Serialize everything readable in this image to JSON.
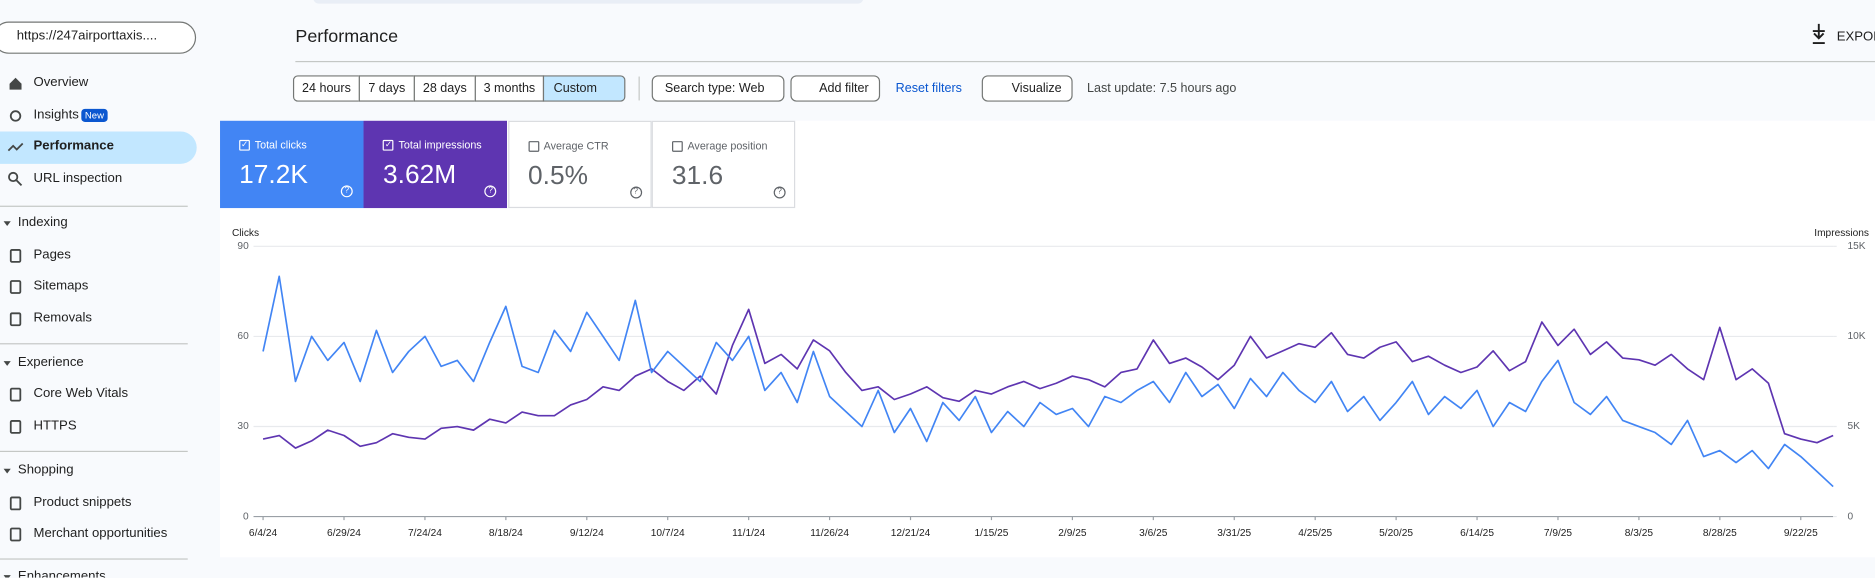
{
  "sidebar": {
    "property": "https://247airporttaxis....",
    "nav": [
      "Overview",
      "Insights",
      "Performance",
      "URL inspection"
    ],
    "insights_badge": "New",
    "sections": [
      {
        "title": "Indexing",
        "items": [
          "Pages",
          "Sitemaps",
          "Removals"
        ]
      },
      {
        "title": "Experience",
        "items": [
          "Core Web Vitals",
          "HTTPS"
        ]
      },
      {
        "title": "Shopping",
        "items": [
          "Product snippets",
          "Merchant opportunities"
        ]
      },
      {
        "title": "Enhancements"
      }
    ]
  },
  "header": {
    "title": "Performance",
    "export": "EXPORT"
  },
  "filters": {
    "ranges": [
      "24 hours",
      "7 days",
      "28 days",
      "3 months",
      "Custom"
    ],
    "search_type": "Search type: Web",
    "add_filter": "Add filter",
    "reset": "Reset filters",
    "visualize": "Visualize",
    "last_update": "Last update: 7.5 hours ago"
  },
  "metrics": [
    {
      "label": "Total clicks",
      "value": "17.2K",
      "checked": true,
      "color": "#4285f4"
    },
    {
      "label": "Total impressions",
      "value": "3.62M",
      "checked": true,
      "color": "#5e35b1"
    },
    {
      "label": "Average CTR",
      "value": "0.5%",
      "checked": false
    },
    {
      "label": "Average position",
      "value": "31.6",
      "checked": false
    }
  ],
  "chart_data": {
    "type": "line",
    "y_label": "Clicks",
    "y2_label": "Impressions",
    "x": [
      "6/4/24",
      "6/9/24",
      "6/14/24",
      "6/19/24",
      "6/24/24",
      "6/29/24",
      "7/4/24",
      "7/9/24",
      "7/14/24",
      "7/19/24",
      "7/24/24",
      "7/29/24",
      "8/3/24",
      "8/8/24",
      "8/13/24",
      "8/18/24",
      "8/23/24",
      "8/28/24",
      "9/2/24",
      "9/7/24",
      "9/12/24",
      "9/17/24",
      "9/22/24",
      "9/27/24",
      "10/2/24",
      "10/7/24",
      "10/12/24",
      "10/17/24",
      "10/22/24",
      "10/27/24",
      "11/1/24",
      "11/6/24",
      "11/11/24",
      "11/16/24",
      "11/21/24",
      "11/26/24",
      "12/1/24",
      "12/6/24",
      "12/11/24",
      "12/16/24",
      "12/21/24",
      "12/26/24",
      "12/31/24",
      "1/5/25",
      "1/10/25",
      "1/15/25",
      "1/20/25",
      "1/25/25",
      "1/30/25",
      "2/4/25",
      "2/9/25",
      "2/14/25",
      "2/19/25",
      "2/24/25",
      "3/1/25",
      "3/6/25",
      "3/11/25",
      "3/16/25",
      "3/21/25",
      "3/26/25",
      "3/31/25",
      "4/5/25",
      "4/10/25",
      "4/15/25",
      "4/20/25",
      "4/25/25",
      "4/30/25",
      "5/5/25",
      "5/10/25",
      "5/15/25",
      "5/20/25",
      "5/25/25",
      "5/30/25",
      "6/4/25",
      "6/9/25",
      "6/14/25",
      "6/19/25",
      "6/24/25",
      "6/29/25",
      "7/4/25",
      "7/9/25",
      "7/14/25",
      "7/19/25",
      "7/24/25",
      "7/29/25",
      "8/3/25",
      "8/8/25",
      "8/13/25",
      "8/18/25",
      "8/23/25",
      "8/28/25",
      "9/2/25",
      "9/7/25",
      "9/12/25",
      "9/17/25",
      "9/22/25",
      "9/27/25",
      "10/2/25"
    ],
    "xticks": [
      "6/4/24",
      "6/29/24",
      "7/24/24",
      "8/18/24",
      "9/12/24",
      "10/7/24",
      "11/1/24",
      "11/26/24",
      "12/21/24",
      "1/15/25",
      "2/9/25",
      "3/6/25",
      "3/31/25",
      "4/25/25",
      "5/20/25",
      "6/14/25",
      "7/9/25",
      "8/3/25",
      "8/28/25",
      "9/22/25"
    ],
    "ylim": [
      0,
      90
    ],
    "yticks": [
      0,
      30,
      60,
      90
    ],
    "y2lim": [
      0,
      15000
    ],
    "y2ticks": [
      0,
      {
        "value": 5000,
        "label": "5K"
      },
      {
        "value": 10000,
        "label": "10K"
      },
      {
        "value": 15000,
        "label": "15K"
      }
    ],
    "grid": true,
    "series": [
      {
        "name": "Clicks",
        "color": "#4285f4",
        "values": [
          55,
          80,
          45,
          60,
          52,
          58,
          45,
          62,
          48,
          55,
          60,
          50,
          52,
          45,
          58,
          70,
          50,
          48,
          62,
          55,
          68,
          60,
          52,
          72,
          48,
          55,
          50,
          45,
          58,
          52,
          60,
          42,
          48,
          38,
          55,
          40,
          35,
          30,
          42,
          28,
          36,
          25,
          38,
          32,
          40,
          28,
          35,
          30,
          38,
          34,
          36,
          30,
          40,
          38,
          42,
          45,
          38,
          48,
          40,
          44,
          36,
          46,
          40,
          48,
          42,
          38,
          45,
          35,
          40,
          32,
          38,
          45,
          34,
          40,
          36,
          42,
          30,
          38,
          35,
          45,
          52,
          38,
          34,
          40,
          32,
          30,
          28,
          24,
          32,
          20,
          22,
          18,
          22,
          16,
          24,
          20,
          15,
          10
        ]
      },
      {
        "name": "Impressions",
        "color": "#5e35b1",
        "axis": "y2",
        "values": [
          4300,
          4500,
          3800,
          4200,
          4800,
          4500,
          3900,
          4100,
          4600,
          4400,
          4300,
          4900,
          5000,
          4800,
          5400,
          5200,
          5800,
          5600,
          5600,
          6200,
          6500,
          7200,
          7000,
          7800,
          8200,
          7500,
          7000,
          7800,
          6800,
          9500,
          11500,
          8500,
          9000,
          8200,
          9800,
          9200,
          8000,
          7000,
          7200,
          6500,
          6800,
          7200,
          6600,
          6400,
          7000,
          6800,
          7200,
          7500,
          7100,
          7400,
          7800,
          7600,
          7200,
          8000,
          8200,
          9800,
          8500,
          8800,
          8300,
          7600,
          8400,
          10000,
          8800,
          9200,
          9600,
          9400,
          10200,
          9000,
          8800,
          9400,
          9700,
          8600,
          8900,
          8400,
          8000,
          8300,
          9200,
          8100,
          8600,
          10800,
          9500,
          10400,
          9000,
          9700,
          8800,
          8700,
          8400,
          9000,
          8200,
          7600,
          10500,
          7600,
          8200,
          7400,
          4600,
          4300,
          4100,
          4500
        ]
      }
    ]
  }
}
